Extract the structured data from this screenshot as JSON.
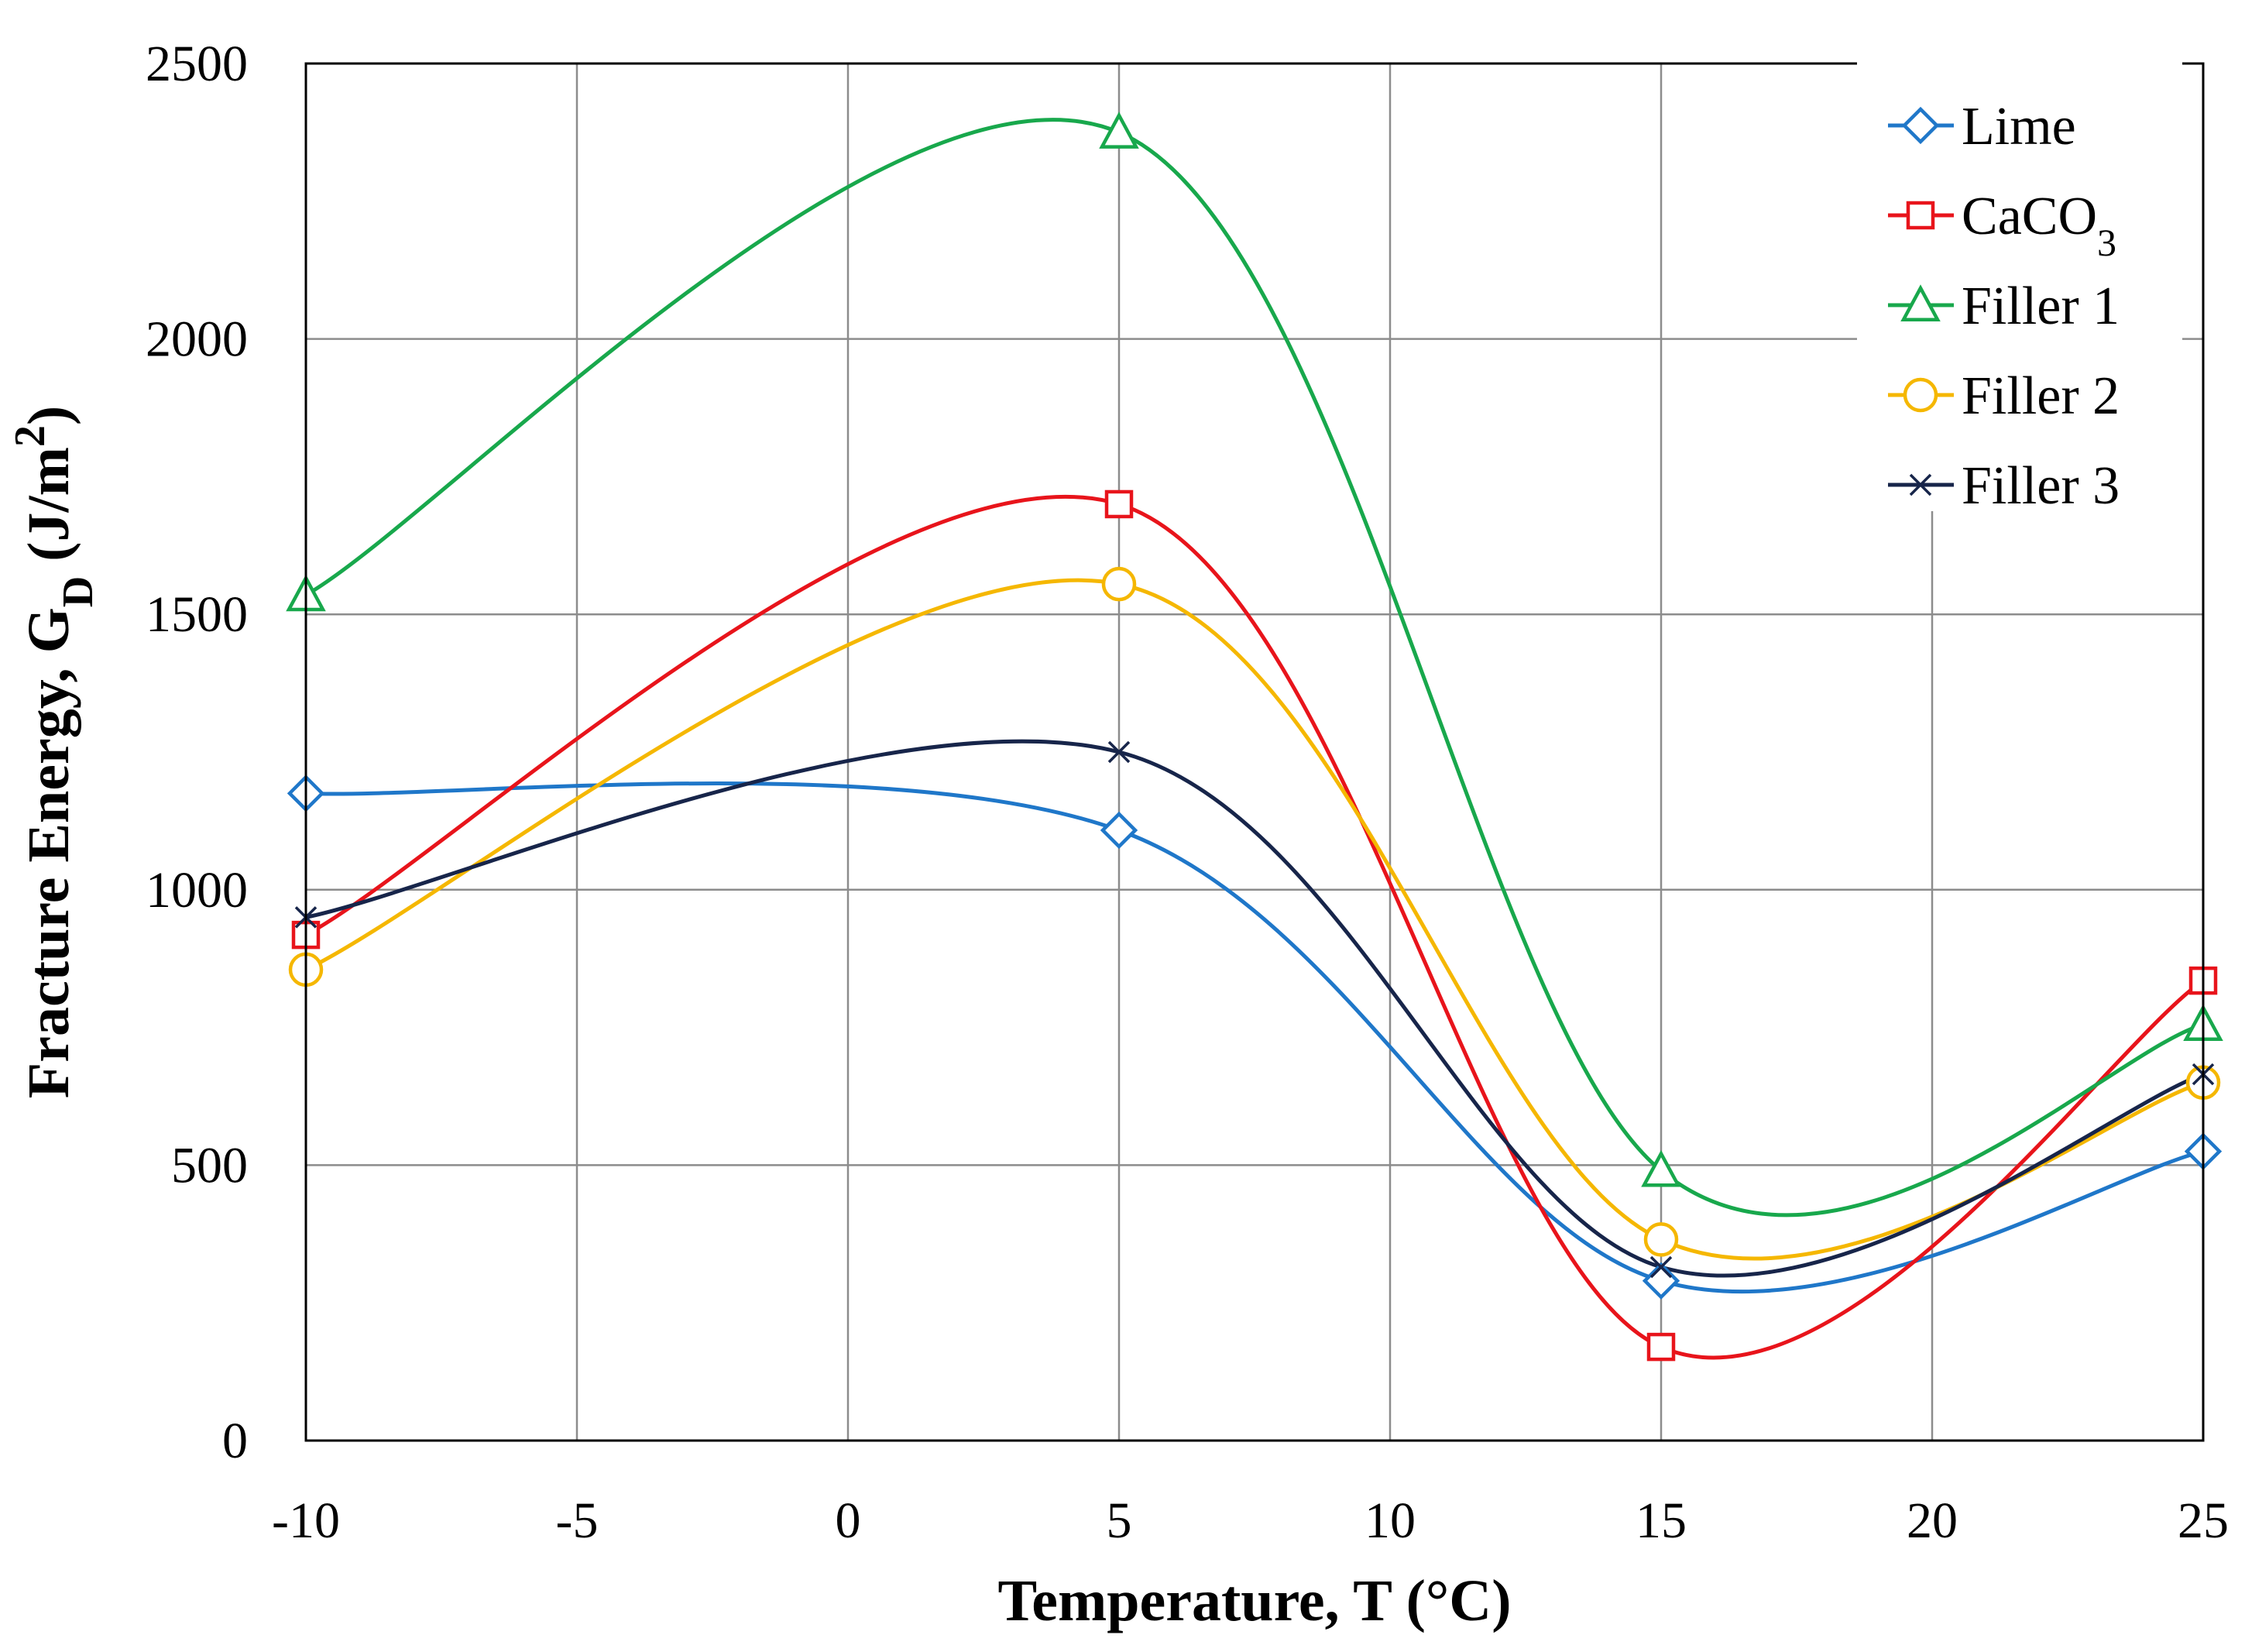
{
  "chart_data": {
    "type": "line",
    "smooth": true,
    "title": "",
    "xlabel": "Temperature, T (°C)",
    "ylabel": {
      "prefix": "Fracture Energy, G",
      "subscript": "D",
      "units_base": " (J/m",
      "units_sup": "2",
      "units_end": ")"
    },
    "xlim": [
      -10,
      25
    ],
    "ylim": [
      0,
      2500
    ],
    "x_ticks": [
      "-10",
      "-5",
      "0",
      "5",
      "10",
      "15",
      "20",
      "25"
    ],
    "y_ticks": [
      "0",
      "500",
      "1000",
      "1500",
      "2000",
      "2500"
    ],
    "x_tick_values": [
      -10,
      -5,
      0,
      5,
      10,
      15,
      20,
      25
    ],
    "y_tick_values": [
      0,
      500,
      1000,
      1500,
      2000,
      2500
    ],
    "grid": true,
    "legend_position": "top-right",
    "x": [
      -10,
      5,
      15,
      25
    ],
    "series": [
      {
        "name": "Lime",
        "label": "Lime",
        "label_sub": "",
        "color": "#1f77c9",
        "marker": "diamond",
        "values": [
          1175,
          1108,
          290,
          525
        ]
      },
      {
        "name": "CaCO3",
        "label": "CaCO",
        "label_sub": "3",
        "color": "#e8141b",
        "marker": "square",
        "values": [
          918,
          1700,
          170,
          835
        ]
      },
      {
        "name": "Filler 1",
        "label": "Filler 1",
        "label_sub": "",
        "color": "#18a84c",
        "marker": "triangle",
        "values": [
          1535,
          2375,
          490,
          755
        ]
      },
      {
        "name": "Filler 2",
        "label": "Filler 2",
        "label_sub": "",
        "color": "#f5b700",
        "marker": "circle",
        "values": [
          855,
          1555,
          365,
          650
        ]
      },
      {
        "name": "Filler 3",
        "label": "Filler 3",
        "label_sub": "",
        "color": "#17254a",
        "marker": "x",
        "values": [
          950,
          1250,
          315,
          665
        ]
      }
    ]
  }
}
